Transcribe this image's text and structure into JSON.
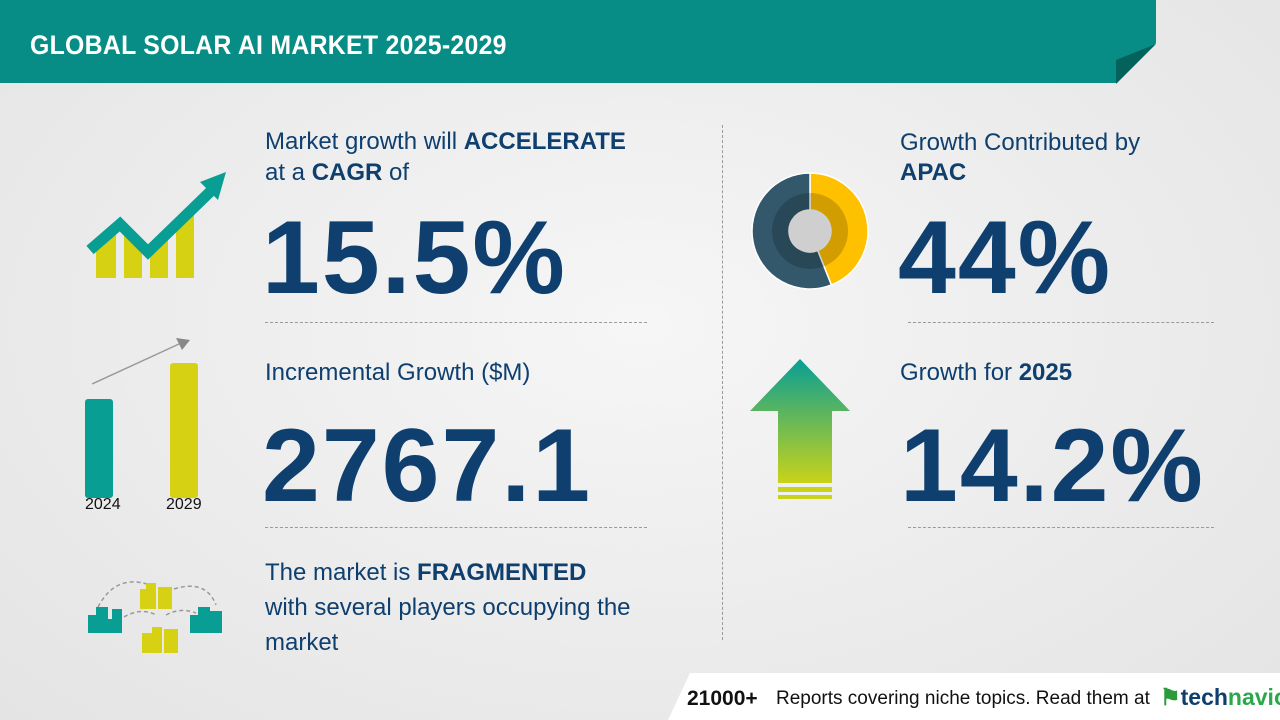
{
  "header": {
    "title": "GLOBAL SOLAR AI MARKET 2025-2029"
  },
  "cagr": {
    "line1_prefix": "Market growth will ",
    "line1_bold": "ACCELERATE",
    "line2_prefix": "at a ",
    "line2_bold": "CAGR",
    "line2_suffix": " of",
    "value": "15.5%",
    "icon": "growth-chart-arrow-icon"
  },
  "incremental": {
    "label": "Incremental Growth ($M)",
    "value": "2767.1",
    "bar_years": [
      "2024",
      "2029"
    ],
    "colors": {
      "2024": "#089e94",
      "2029": "#d6d112"
    }
  },
  "fragmented": {
    "line1_prefix": "The market is ",
    "line1_bold": "FRAGMENTED",
    "line2": "with several players occupying the",
    "line3": "market",
    "icon": "buildings-network-icon"
  },
  "region": {
    "line1": "Growth Contributed by",
    "region": "APAC",
    "value": "44%",
    "share_percent": 44,
    "colors": {
      "share": "#ffc000",
      "rest": "#33586b"
    }
  },
  "yoy": {
    "label_prefix": "Growth for ",
    "year": "2025",
    "value": "14.2%",
    "icon": "up-arrow-icon"
  },
  "footer": {
    "count": "21000+",
    "text": "Reports covering niche topics. Read them at",
    "brand_prefix": "tech",
    "brand_suffix": "navio"
  },
  "colors": {
    "header": "#078d86",
    "text": "#0e3f6e",
    "accent_yellow": "#d6d112"
  }
}
